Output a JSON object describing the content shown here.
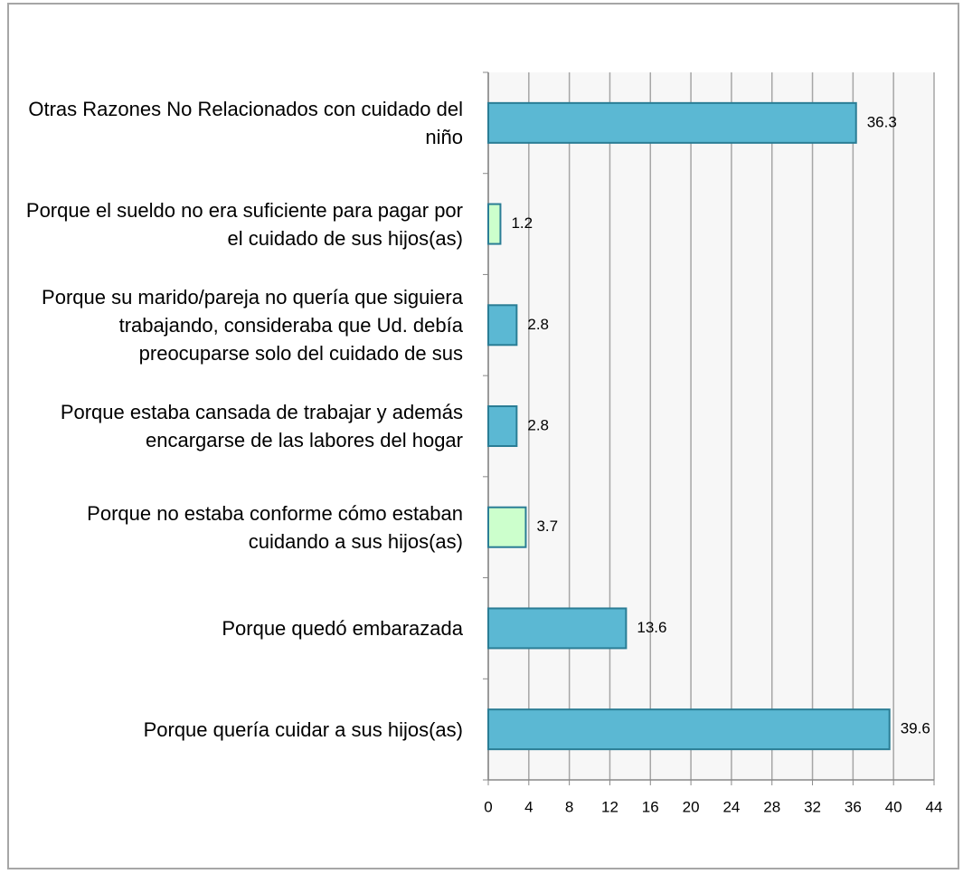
{
  "chart_data": {
    "type": "barh",
    "categories": [
      "Otras Razones No Relacionados con cuidado del niño",
      "Porque el sueldo no era suficiente para pagar por el cuidado de sus hijos(as)",
      "Porque su marido/pareja no quería que siguiera trabajando, consideraba que Ud. debía preocuparse solo del cuidado de sus",
      "Porque estaba cansada de trabajar y además encargarse de las labores del hogar",
      "Porque no estaba conforme cómo estaban cuidando a sus hijos(as)",
      "Porque quedó embarazada",
      "Porque quería cuidar a sus hijos(as)"
    ],
    "values": [
      36.3,
      1.2,
      2.8,
      2.8,
      3.7,
      13.6,
      39.6
    ],
    "colors": [
      "#5bb8d3",
      "#ccffcc",
      "#5bb8d3",
      "#5bb8d3",
      "#ccffcc",
      "#5bb8d3",
      "#5bb8d3"
    ],
    "xlim": [
      0,
      44
    ],
    "xticks": [
      0,
      4,
      8,
      12,
      16,
      20,
      24,
      28,
      32,
      36,
      40,
      44
    ],
    "grid": true
  }
}
